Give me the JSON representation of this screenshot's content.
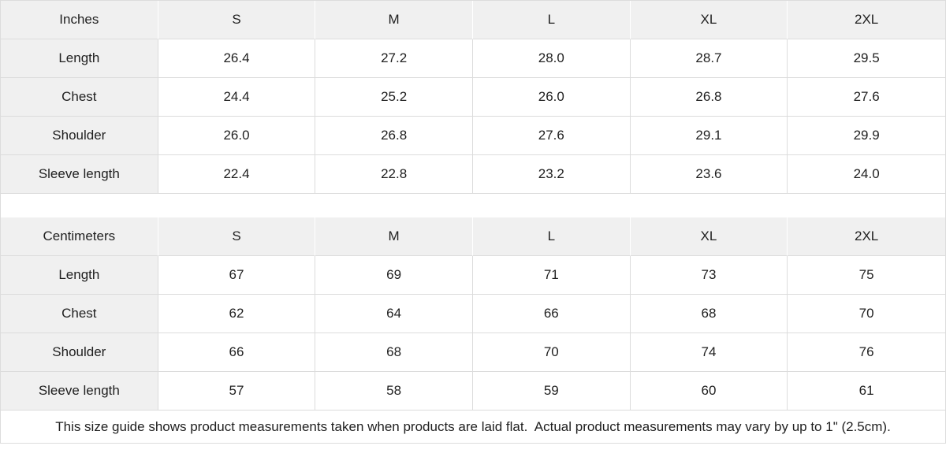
{
  "tables": [
    {
      "unit_label": "Inches",
      "sizes": [
        "S",
        "M",
        "L",
        "XL",
        "2XL"
      ],
      "rows": [
        {
          "label": "Length",
          "values": [
            "26.4",
            "27.2",
            "28.0",
            "28.7",
            "29.5"
          ]
        },
        {
          "label": "Chest",
          "values": [
            "24.4",
            "25.2",
            "26.0",
            "26.8",
            "27.6"
          ]
        },
        {
          "label": "Shoulder",
          "values": [
            "26.0",
            "26.8",
            "27.6",
            "29.1",
            "29.9"
          ]
        },
        {
          "label": "Sleeve length",
          "values": [
            "22.4",
            "22.8",
            "23.2",
            "23.6",
            "24.0"
          ]
        }
      ]
    },
    {
      "unit_label": "Centimeters",
      "sizes": [
        "S",
        "M",
        "L",
        "XL",
        "2XL"
      ],
      "rows": [
        {
          "label": "Length",
          "values": [
            "67",
            "69",
            "71",
            "73",
            "75"
          ]
        },
        {
          "label": "Chest",
          "values": [
            "62",
            "64",
            "66",
            "68",
            "70"
          ]
        },
        {
          "label": "Shoulder",
          "values": [
            "66",
            "68",
            "70",
            "74",
            "76"
          ]
        },
        {
          "label": "Sleeve length",
          "values": [
            "57",
            "58",
            "59",
            "60",
            "61"
          ]
        }
      ]
    }
  ],
  "footer": {
    "note": "This size guide shows product measurements taken when products are laid flat.  Actual product measurements may vary by up to 1\" (2.5cm)."
  },
  "colors": {
    "cell_bg": "#f0f0f0",
    "border": "#dcdcdc",
    "head_divider": "#ffffff",
    "text": "#1f1f1f",
    "page_bg": "#ffffff"
  }
}
